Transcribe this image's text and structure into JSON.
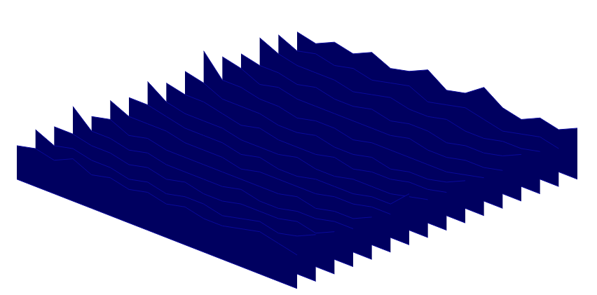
{
  "chart_data": {
    "type": "surface",
    "tick_labels": false,
    "color": "#0a0a9c",
    "zlim": [
      0,
      10
    ],
    "z": [
      [
        5,
        4,
        6,
        5,
        7,
        5,
        6,
        8,
        5,
        6,
        9,
        6,
        5,
        7,
        6,
        8
      ],
      [
        6,
        4,
        5,
        4,
        5,
        4,
        5,
        6,
        4,
        5,
        6,
        5,
        4,
        5,
        6,
        5
      ],
      [
        7,
        5,
        4,
        4,
        4,
        3,
        4,
        5,
        4,
        4,
        5,
        4,
        4,
        5,
        5,
        6
      ],
      [
        5,
        4,
        4,
        3,
        4,
        3,
        3,
        4,
        3,
        4,
        4,
        3,
        4,
        4,
        5,
        7
      ],
      [
        6,
        5,
        3,
        4,
        3,
        3,
        3,
        3,
        3,
        3,
        4,
        3,
        3,
        4,
        4,
        5
      ],
      [
        9,
        4,
        4,
        3,
        3,
        2,
        3,
        3,
        2,
        3,
        3,
        3,
        3,
        3,
        4,
        5
      ],
      [
        6,
        5,
        3,
        3,
        3,
        2,
        2,
        3,
        2,
        2,
        3,
        2,
        3,
        3,
        4,
        6
      ],
      [
        5,
        4,
        4,
        3,
        2,
        3,
        2,
        2,
        2,
        3,
        2,
        3,
        3,
        4,
        4,
        5
      ],
      [
        7,
        4,
        3,
        3,
        3,
        2,
        2,
        2,
        3,
        2,
        2,
        3,
        3,
        3,
        4,
        5
      ],
      [
        5,
        5,
        4,
        3,
        3,
        3,
        2,
        3,
        2,
        2,
        3,
        3,
        3,
        4,
        4,
        8
      ],
      [
        6,
        4,
        4,
        4,
        3,
        3,
        3,
        2,
        3,
        3,
        3,
        3,
        4,
        4,
        5,
        5
      ],
      [
        4,
        5,
        3,
        4,
        3,
        3,
        3,
        3,
        3,
        3,
        3,
        4,
        3,
        4,
        4,
        6
      ],
      [
        8,
        4,
        4,
        3,
        4,
        3,
        3,
        3,
        3,
        4,
        3,
        3,
        4,
        4,
        5,
        5
      ],
      [
        5,
        5,
        4,
        4,
        3,
        4,
        3,
        4,
        3,
        3,
        4,
        4,
        4,
        5,
        4,
        6
      ],
      [
        6,
        4,
        5,
        4,
        4,
        3,
        4,
        3,
        4,
        4,
        3,
        4,
        5,
        4,
        5,
        7
      ],
      [
        4,
        5,
        4,
        6,
        4,
        5,
        4,
        5,
        4,
        5,
        4,
        4,
        5,
        6,
        5,
        4
      ]
    ]
  }
}
